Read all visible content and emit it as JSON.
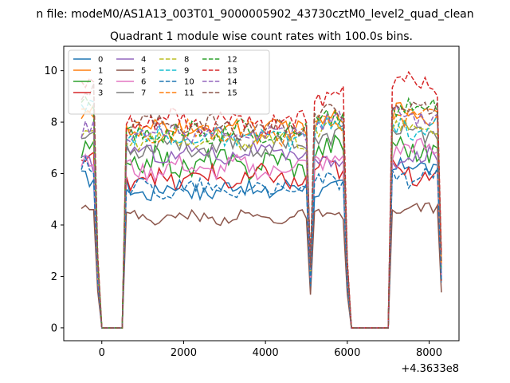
{
  "figure": {
    "suptitle": "n file: modeM0/AS1A13_003T01_9000005902_43730cztM0_level2_quad_clean",
    "title": "Quadrant 1 module wise count rates with 100.0s bins.",
    "x_offset_label": "+4.3633e8"
  },
  "chart_data": {
    "type": "line",
    "title": "Quadrant 1 module wise count rates with 100.0s bins.",
    "xlabel": "",
    "ylabel": "",
    "x_offset": "+4.3633e8",
    "xlim": [
      -930,
      8730
    ],
    "ylim": [
      -0.5,
      10.95
    ],
    "xticks": [
      0,
      2000,
      4000,
      6000,
      8000
    ],
    "xtick_labels": [
      "0",
      "2000",
      "4000",
      "6000",
      "8000"
    ],
    "yticks": [
      0,
      2,
      4,
      6,
      8,
      10
    ],
    "ytick_labels": [
      "0",
      "2",
      "4",
      "6",
      "8",
      "10"
    ],
    "grid": false,
    "legend_placement": "top-left",
    "legend_columns": 4,
    "segments": [
      {
        "start": -500,
        "end": -200
      },
      {
        "start": 600,
        "end": 5000
      },
      {
        "start": 5200,
        "end": 5900
      },
      {
        "start": 7100,
        "end": 8200
      }
    ],
    "series": [
      {
        "name": "0",
        "color": "#1f77b4",
        "dashed": false,
        "levels": [
          6.0,
          5.4,
          5.5,
          6.2
        ],
        "amp": 0.35
      },
      {
        "name": "1",
        "color": "#ff7f0e",
        "dashed": false,
        "levels": [
          8.6,
          7.7,
          8.1,
          8.3
        ],
        "amp": 0.35
      },
      {
        "name": "2",
        "color": "#2ca02c",
        "dashed": false,
        "levels": [
          6.8,
          6.4,
          6.9,
          7.0
        ],
        "amp": 0.45
      },
      {
        "name": "3",
        "color": "#d62728",
        "dashed": false,
        "levels": [
          6.3,
          5.8,
          6.1,
          6.1
        ],
        "amp": 0.4
      },
      {
        "name": "4",
        "color": "#9467bd",
        "dashed": false,
        "levels": [
          6.3,
          6.8,
          6.4,
          6.6
        ],
        "amp": 0.3
      },
      {
        "name": "5",
        "color": "#8c564b",
        "dashed": false,
        "levels": [
          4.8,
          4.3,
          4.4,
          4.6
        ],
        "amp": 0.2
      },
      {
        "name": "6",
        "color": "#e377c2",
        "dashed": false,
        "levels": [
          6.6,
          6.2,
          6.6,
          6.9
        ],
        "amp": 0.35
      },
      {
        "name": "7",
        "color": "#7f7f7f",
        "dashed": false,
        "levels": [
          7.6,
          7.1,
          7.4,
          7.6
        ],
        "amp": 0.35
      },
      {
        "name": "8",
        "color": "#bcbd22",
        "dashed": true,
        "levels": [
          7.4,
          7.3,
          7.7,
          7.8
        ],
        "amp": 0.3
      },
      {
        "name": "9",
        "color": "#17becf",
        "dashed": true,
        "levels": [
          8.3,
          7.4,
          7.7,
          7.8
        ],
        "amp": 0.35
      },
      {
        "name": "10",
        "color": "#1f77b4",
        "dashed": true,
        "levels": [
          6.2,
          5.4,
          5.7,
          5.9
        ],
        "amp": 0.3
      },
      {
        "name": "11",
        "color": "#ff7f0e",
        "dashed": true,
        "levels": [
          8.5,
          7.6,
          8.0,
          8.3
        ],
        "amp": 0.35
      },
      {
        "name": "12",
        "color": "#2ca02c",
        "dashed": true,
        "levels": [
          8.8,
          7.6,
          8.4,
          8.6
        ],
        "amp": 0.35
      },
      {
        "name": "13",
        "color": "#d62728",
        "dashed": true,
        "levels": [
          9.6,
          8.0,
          9.0,
          9.6
        ],
        "amp": 0.4
      },
      {
        "name": "14",
        "color": "#9467bd",
        "dashed": true,
        "levels": [
          7.8,
          7.6,
          8.0,
          8.2
        ],
        "amp": 0.3
      },
      {
        "name": "15",
        "color": "#8c564b",
        "dashed": true,
        "levels": [
          9.0,
          7.8,
          8.2,
          8.6
        ],
        "amp": 0.35
      }
    ]
  }
}
